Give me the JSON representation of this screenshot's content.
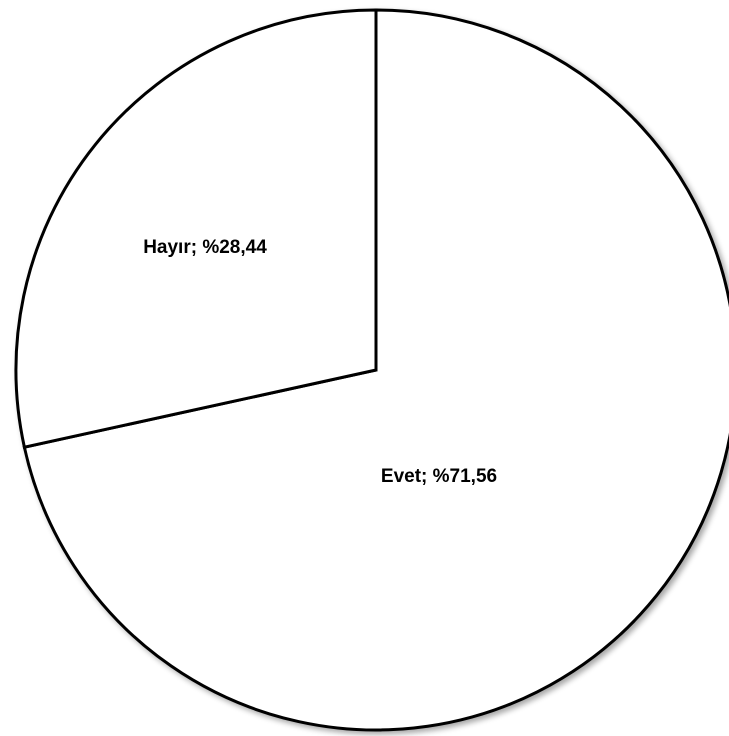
{
  "chart_data": {
    "type": "pie",
    "title": "",
    "slices": [
      {
        "name": "Evet",
        "value": 71.56,
        "label": "Evet; %71,56",
        "color": "#ffffff"
      },
      {
        "name": "Hayır",
        "value": 28.44,
        "label": "Hayır; %28,44",
        "color": "#ffffff"
      }
    ],
    "start_angle": "12 o'clock",
    "direction": "clockwise",
    "stroke_color": "#000000",
    "legend": "none"
  }
}
